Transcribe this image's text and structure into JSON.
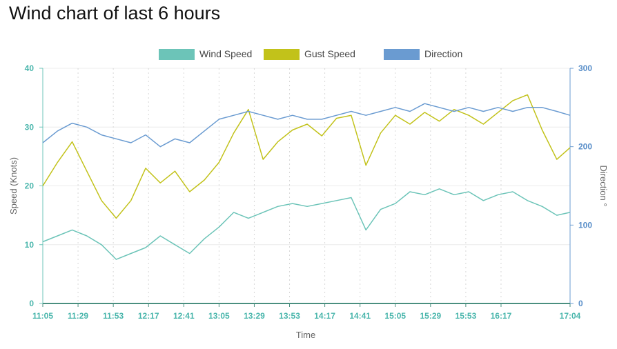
{
  "page": {
    "title": "Wind chart of last 6 hours"
  },
  "chart_data": {
    "type": "line",
    "title": "Wind chart of last 6 hours",
    "xlabel": "Time",
    "ylabel": "Speed (Knots)",
    "ylabel_right": "Direction °",
    "ylim": [
      0,
      40
    ],
    "ylim_right": [
      0,
      300
    ],
    "yticks": [
      "0",
      "10",
      "20",
      "30",
      "40"
    ],
    "yticks_right": [
      "0",
      "100",
      "200",
      "300"
    ],
    "xticks": [
      "11:05",
      "11:29",
      "11:53",
      "12:17",
      "12:41",
      "13:05",
      "13:29",
      "13:53",
      "14:17",
      "14:41",
      "15:05",
      "15:29",
      "15:53",
      "16:17",
      "17:04"
    ],
    "grid": true,
    "legend": "top-center",
    "x": [
      "11:05",
      "11:15",
      "11:25",
      "11:35",
      "11:45",
      "11:55",
      "12:05",
      "12:15",
      "12:25",
      "12:35",
      "12:45",
      "12:55",
      "13:05",
      "13:15",
      "13:25",
      "13:35",
      "13:45",
      "13:55",
      "14:05",
      "14:15",
      "14:25",
      "14:35",
      "14:45",
      "14:55",
      "15:05",
      "15:15",
      "15:25",
      "15:35",
      "15:45",
      "15:55",
      "16:05",
      "16:15",
      "16:25",
      "16:35",
      "16:45",
      "16:55",
      "17:04"
    ],
    "series": [
      {
        "name": "Wind Speed",
        "axis": "left",
        "color": "#6cc4b8",
        "values": [
          10.5,
          11.5,
          12.5,
          11.5,
          10.0,
          7.5,
          8.5,
          9.5,
          11.5,
          10.0,
          8.5,
          11.0,
          13.0,
          15.5,
          14.5,
          15.5,
          16.5,
          17.0,
          16.5,
          17.0,
          17.5,
          18.0,
          12.5,
          16.0,
          17.0,
          19.0,
          18.5,
          19.5,
          18.5,
          19.0,
          17.5,
          18.5,
          19.0,
          17.5,
          16.5,
          15.0,
          15.5
        ]
      },
      {
        "name": "Gust Speed",
        "axis": "left",
        "color": "#c2c21a",
        "values": [
          20.0,
          24.0,
          27.5,
          22.5,
          17.5,
          14.5,
          17.5,
          23.0,
          20.5,
          22.5,
          19.0,
          21.0,
          24.0,
          29.0,
          33.0,
          24.5,
          27.5,
          29.5,
          30.5,
          28.5,
          31.5,
          32.0,
          23.5,
          29.0,
          32.0,
          30.5,
          32.5,
          31.0,
          33.0,
          32.0,
          30.5,
          32.5,
          34.5,
          35.5,
          29.5,
          24.5,
          26.5
        ]
      },
      {
        "name": "Direction",
        "axis": "right",
        "color": "#6a9bd1",
        "values": [
          205,
          220,
          230,
          225,
          215,
          210,
          205,
          215,
          200,
          210,
          205,
          220,
          235,
          240,
          245,
          240,
          235,
          240,
          235,
          235,
          240,
          245,
          240,
          245,
          250,
          245,
          255,
          250,
          245,
          250,
          245,
          250,
          245,
          250,
          250,
          245,
          240
        ]
      }
    ]
  }
}
